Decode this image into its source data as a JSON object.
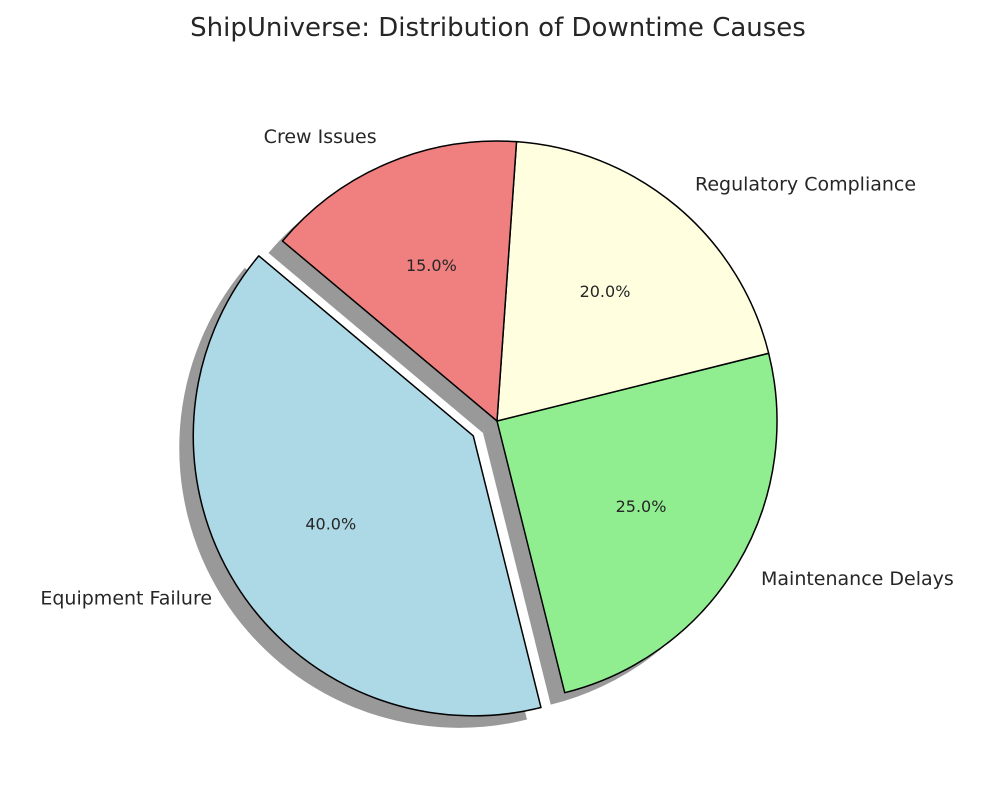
{
  "chart_data": {
    "type": "pie",
    "title": "ShipUniverse: Distribution of Downtime Causes",
    "labels": [
      "Equipment Failure",
      "Maintenance Delays",
      "Regulatory Compliance",
      "Crew Issues"
    ],
    "values": [
      40,
      25,
      20,
      15
    ],
    "percent_labels": [
      "40.0%",
      "25.0%",
      "20.0%",
      "15.0%"
    ],
    "colors": [
      "#add8e6",
      "#90ee90",
      "#ffffe0",
      "#f08080"
    ],
    "explode": [
      0.1,
      0,
      0,
      0
    ],
    "start_angle": 140,
    "shadow": true,
    "direction": "counterclockwise"
  }
}
